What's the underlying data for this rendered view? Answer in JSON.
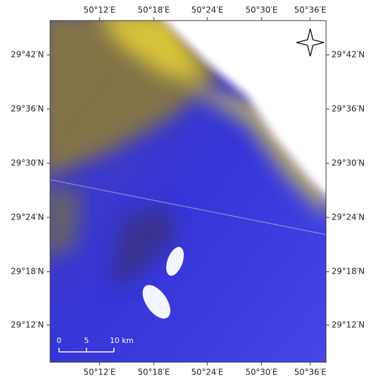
{
  "map": {
    "longitude_labels": [
      "50°12′E",
      "50°18′E",
      "50°24′E",
      "50°30′E",
      "50°36′E"
    ],
    "latitude_labels": [
      "29°42′N",
      "29°36′N",
      "29°30′N",
      "29°24′N",
      "29°18′N",
      "29°12′N"
    ],
    "scale_bar": {
      "labels": [
        "0",
        "5",
        "10 km"
      ]
    }
  }
}
